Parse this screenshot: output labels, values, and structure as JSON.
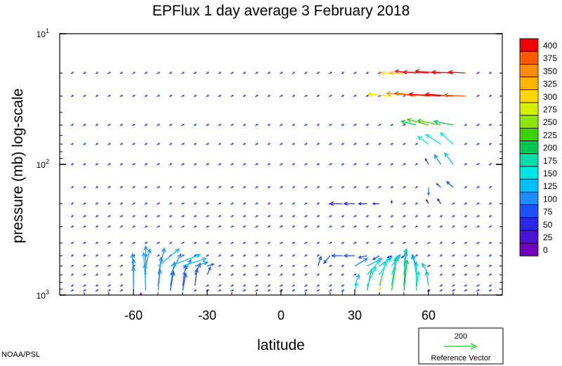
{
  "chart_data": {
    "type": "vector-field",
    "title": "EPFlux  1 day average  3 February  2018",
    "xlabel": "latitude",
    "ylabel": "pressure (mb)  log-scale",
    "x_ticks": [
      -60,
      -30,
      0,
      30,
      60
    ],
    "x_tick_labels": [
      "-60",
      "-30",
      "0",
      "30",
      "60"
    ],
    "xlim": [
      -90,
      90
    ],
    "ylim": [
      1000,
      10
    ],
    "y_scale": "log",
    "y_ticks": [
      {
        "base": "10",
        "exp": "1",
        "value": 10
      },
      {
        "base": "10",
        "exp": "2",
        "value": 100
      },
      {
        "base": "10",
        "exp": "3",
        "value": 1000
      }
    ],
    "pressure_levels": [
      1000,
      925,
      850,
      700,
      600,
      500,
      400,
      300,
      250,
      200,
      150,
      100,
      70,
      50,
      30,
      20,
      10
    ],
    "colorbar": {
      "labels": [
        "400",
        "375",
        "350",
        "325",
        "300",
        "275",
        "250",
        "225",
        "200",
        "175",
        "150",
        "125",
        "100",
        "75",
        "50",
        "25",
        "0"
      ],
      "colors": [
        "#ee0000",
        "#ff5a00",
        "#ff8c00",
        "#ffb400",
        "#ffd700",
        "#d2f000",
        "#8ce600",
        "#3cd200",
        "#00c850",
        "#00dcaa",
        "#00e6e6",
        "#00beff",
        "#1e8cff",
        "#1e50ff",
        "#2828e6",
        "#4b14d2",
        "#6e00be"
      ]
    },
    "reference": {
      "value": "200",
      "label": "Reference Vector",
      "color": "#3cdc3c"
    },
    "credit": "NOAA/PSL",
    "vectors": [
      {
        "lat": -57,
        "p": 1000,
        "u": 0,
        "v": 2,
        "mag": 20
      },
      {
        "lat": -60,
        "p": 925,
        "u": 0,
        "v": 25,
        "mag": 110
      },
      {
        "lat": -55,
        "p": 925,
        "u": -1,
        "v": 28,
        "mag": 120
      },
      {
        "lat": -50,
        "p": 925,
        "u": 2,
        "v": 22,
        "mag": 100
      },
      {
        "lat": -45,
        "p": 925,
        "u": 3,
        "v": 20,
        "mag": 95
      },
      {
        "lat": -40,
        "p": 925,
        "u": 3,
        "v": 18,
        "mag": 90
      },
      {
        "lat": -60,
        "p": 850,
        "u": 0,
        "v": 28,
        "mag": 110
      },
      {
        "lat": -55,
        "p": 850,
        "u": -2,
        "v": 35,
        "mag": 125
      },
      {
        "lat": -50,
        "p": 850,
        "u": 3,
        "v": 30,
        "mag": 115
      },
      {
        "lat": -45,
        "p": 850,
        "u": 4,
        "v": 25,
        "mag": 100
      },
      {
        "lat": -40,
        "p": 850,
        "u": 3,
        "v": 22,
        "mag": 95
      },
      {
        "lat": -35,
        "p": 850,
        "u": 2,
        "v": 18,
        "mag": 85
      },
      {
        "lat": -60,
        "p": 700,
        "u": -1,
        "v": 22,
        "mag": 100
      },
      {
        "lat": -55,
        "p": 700,
        "u": 0,
        "v": 30,
        "mag": 115
      },
      {
        "lat": -50,
        "p": 700,
        "u": 6,
        "v": 28,
        "mag": 115
      },
      {
        "lat": -45,
        "p": 700,
        "u": 10,
        "v": 22,
        "mag": 110
      },
      {
        "lat": -40,
        "p": 700,
        "u": 8,
        "v": 16,
        "mag": 100
      },
      {
        "lat": -35,
        "p": 700,
        "u": 5,
        "v": 12,
        "mag": 90
      },
      {
        "lat": -30,
        "p": 700,
        "u": 3,
        "v": 8,
        "mag": 75
      },
      {
        "lat": -55,
        "p": 600,
        "u": 4,
        "v": 18,
        "mag": 100
      },
      {
        "lat": -50,
        "p": 600,
        "u": 20,
        "v": 18,
        "mag": 130
      },
      {
        "lat": -45,
        "p": 600,
        "u": 28,
        "v": 12,
        "mag": 140
      },
      {
        "lat": -40,
        "p": 600,
        "u": 22,
        "v": 8,
        "mag": 125
      },
      {
        "lat": -35,
        "p": 600,
        "u": 12,
        "v": 4,
        "mag": 100
      },
      {
        "lat": -30,
        "p": 600,
        "u": 6,
        "v": 2,
        "mag": 80
      },
      {
        "lat": 15,
        "p": 600,
        "u": 3,
        "v": 10,
        "mag": 90
      },
      {
        "lat": 20,
        "p": 500,
        "u": -6,
        "v": -8,
        "mag": 90
      },
      {
        "lat": 25,
        "p": 500,
        "u": -10,
        "v": 0,
        "mag": 80
      },
      {
        "lat": 30,
        "p": 500,
        "u": -10,
        "v": 0,
        "mag": 80
      },
      {
        "lat": 35,
        "p": 500,
        "u": -8,
        "v": -2,
        "mag": 75
      },
      {
        "lat": 40,
        "p": 500,
        "u": -6,
        "v": -4,
        "mag": 75
      },
      {
        "lat": 25,
        "p": 1000,
        "u": 0,
        "v": 5,
        "mag": 110
      },
      {
        "lat": 30,
        "p": 925,
        "u": 2,
        "v": 8,
        "mag": 150
      },
      {
        "lat": 35,
        "p": 925,
        "u": 4,
        "v": 22,
        "mag": 200
      },
      {
        "lat": 40,
        "p": 925,
        "u": 6,
        "v": 30,
        "mag": 300
      },
      {
        "lat": 45,
        "p": 925,
        "u": 5,
        "v": 35,
        "mag": 240
      },
      {
        "lat": 50,
        "p": 925,
        "u": 3,
        "v": 32,
        "mag": 200
      },
      {
        "lat": 55,
        "p": 925,
        "u": 2,
        "v": 20,
        "mag": 180
      },
      {
        "lat": 30,
        "p": 850,
        "u": 4,
        "v": 12,
        "mag": 140
      },
      {
        "lat": 35,
        "p": 850,
        "u": 8,
        "v": 20,
        "mag": 160
      },
      {
        "lat": 40,
        "p": 850,
        "u": 6,
        "v": 25,
        "mag": 170
      },
      {
        "lat": 45,
        "p": 850,
        "u": 4,
        "v": 30,
        "mag": 190
      },
      {
        "lat": 50,
        "p": 850,
        "u": 2,
        "v": 35,
        "mag": 210
      },
      {
        "lat": 55,
        "p": 850,
        "u": 0,
        "v": 25,
        "mag": 180
      },
      {
        "lat": 60,
        "p": 850,
        "u": -2,
        "v": 15,
        "mag": 140
      },
      {
        "lat": 35,
        "p": 700,
        "u": 12,
        "v": 15,
        "mag": 160
      },
      {
        "lat": 40,
        "p": 700,
        "u": 10,
        "v": 18,
        "mag": 165
      },
      {
        "lat": 45,
        "p": 700,
        "u": 6,
        "v": 20,
        "mag": 170
      },
      {
        "lat": 50,
        "p": 700,
        "u": 2,
        "v": 25,
        "mag": 180
      },
      {
        "lat": 55,
        "p": 700,
        "u": -3,
        "v": 20,
        "mag": 160
      },
      {
        "lat": 60,
        "p": 700,
        "u": -6,
        "v": 12,
        "mag": 130
      },
      {
        "lat": 30,
        "p": 600,
        "u": 12,
        "v": 8,
        "mag": 120
      },
      {
        "lat": 35,
        "p": 600,
        "u": 14,
        "v": 8,
        "mag": 130
      },
      {
        "lat": 40,
        "p": 600,
        "u": 12,
        "v": 10,
        "mag": 135
      },
      {
        "lat": 45,
        "p": 600,
        "u": 8,
        "v": 12,
        "mag": 130
      },
      {
        "lat": 50,
        "p": 600,
        "u": 2,
        "v": 18,
        "mag": 130
      },
      {
        "lat": 55,
        "p": 600,
        "u": -4,
        "v": 12,
        "mag": 110
      },
      {
        "lat": 45,
        "p": 500,
        "u": -4,
        "v": -2,
        "mag": 60
      },
      {
        "lat": 50,
        "p": 500,
        "u": -2,
        "v": -2,
        "mag": 50
      },
      {
        "lat": 25,
        "p": 200,
        "u": -12,
        "v": 0,
        "mag": 60
      },
      {
        "lat": 30,
        "p": 200,
        "u": -10,
        "v": 0,
        "mag": 60
      },
      {
        "lat": 35,
        "p": 200,
        "u": -8,
        "v": 0,
        "mag": 55
      },
      {
        "lat": 40,
        "p": 200,
        "u": -6,
        "v": 0,
        "mag": 55
      },
      {
        "lat": 45,
        "p": 200,
        "u": 0,
        "v": 3,
        "mag": 50
      },
      {
        "lat": 60,
        "p": 200,
        "u": -2,
        "v": 4,
        "mag": 60
      },
      {
        "lat": 65,
        "p": 200,
        "u": -3,
        "v": 5,
        "mag": 60
      },
      {
        "lat": 60,
        "p": 150,
        "u": 0,
        "v": -8,
        "mag": 110
      },
      {
        "lat": 65,
        "p": 150,
        "u": -4,
        "v": 4,
        "mag": 80
      },
      {
        "lat": 70,
        "p": 150,
        "u": -6,
        "v": 6,
        "mag": 90
      },
      {
        "lat": 60,
        "p": 100,
        "u": -3,
        "v": 6,
        "mag": 90
      },
      {
        "lat": 65,
        "p": 100,
        "u": -6,
        "v": 10,
        "mag": 120
      },
      {
        "lat": 70,
        "p": 100,
        "u": -8,
        "v": 12,
        "mag": 130
      },
      {
        "lat": 60,
        "p": 70,
        "u": -10,
        "v": 8,
        "mag": 150
      },
      {
        "lat": 65,
        "p": 70,
        "u": -14,
        "v": 10,
        "mag": 160
      },
      {
        "lat": 70,
        "p": 70,
        "u": -12,
        "v": 12,
        "mag": 150
      },
      {
        "lat": 55,
        "p": 50,
        "u": -14,
        "v": 4,
        "mag": 200
      },
      {
        "lat": 60,
        "p": 50,
        "u": -20,
        "v": 6,
        "mag": 230
      },
      {
        "lat": 65,
        "p": 50,
        "u": -22,
        "v": 5,
        "mag": 240
      },
      {
        "lat": 70,
        "p": 50,
        "u": -18,
        "v": 4,
        "mag": 210
      },
      {
        "lat": 45,
        "p": 30,
        "u": -22,
        "v": 2,
        "mag": 300
      },
      {
        "lat": 55,
        "p": 30,
        "u": -28,
        "v": 3,
        "mag": 350
      },
      {
        "lat": 60,
        "p": 30,
        "u": -32,
        "v": 3,
        "mag": 380
      },
      {
        "lat": 65,
        "p": 30,
        "u": -30,
        "v": 2,
        "mag": 400
      },
      {
        "lat": 70,
        "p": 30,
        "u": -26,
        "v": 2,
        "mag": 400
      },
      {
        "lat": 75,
        "p": 30,
        "u": -20,
        "v": 1,
        "mag": 380
      },
      {
        "lat": 55,
        "p": 20,
        "u": -20,
        "v": 2,
        "mag": 400
      },
      {
        "lat": 60,
        "p": 20,
        "u": -24,
        "v": 1,
        "mag": 400
      },
      {
        "lat": 65,
        "p": 20,
        "u": -24,
        "v": 2,
        "mag": 400
      },
      {
        "lat": 70,
        "p": 20,
        "u": -20,
        "v": 1,
        "mag": 400
      },
      {
        "lat": 75,
        "p": 20,
        "u": -16,
        "v": 1,
        "mag": 400
      },
      {
        "lat": 50,
        "p": 20,
        "u": -14,
        "v": 0,
        "mag": 330
      },
      {
        "lat": 45,
        "p": 20,
        "u": -10,
        "v": 0,
        "mag": 300
      }
    ]
  }
}
